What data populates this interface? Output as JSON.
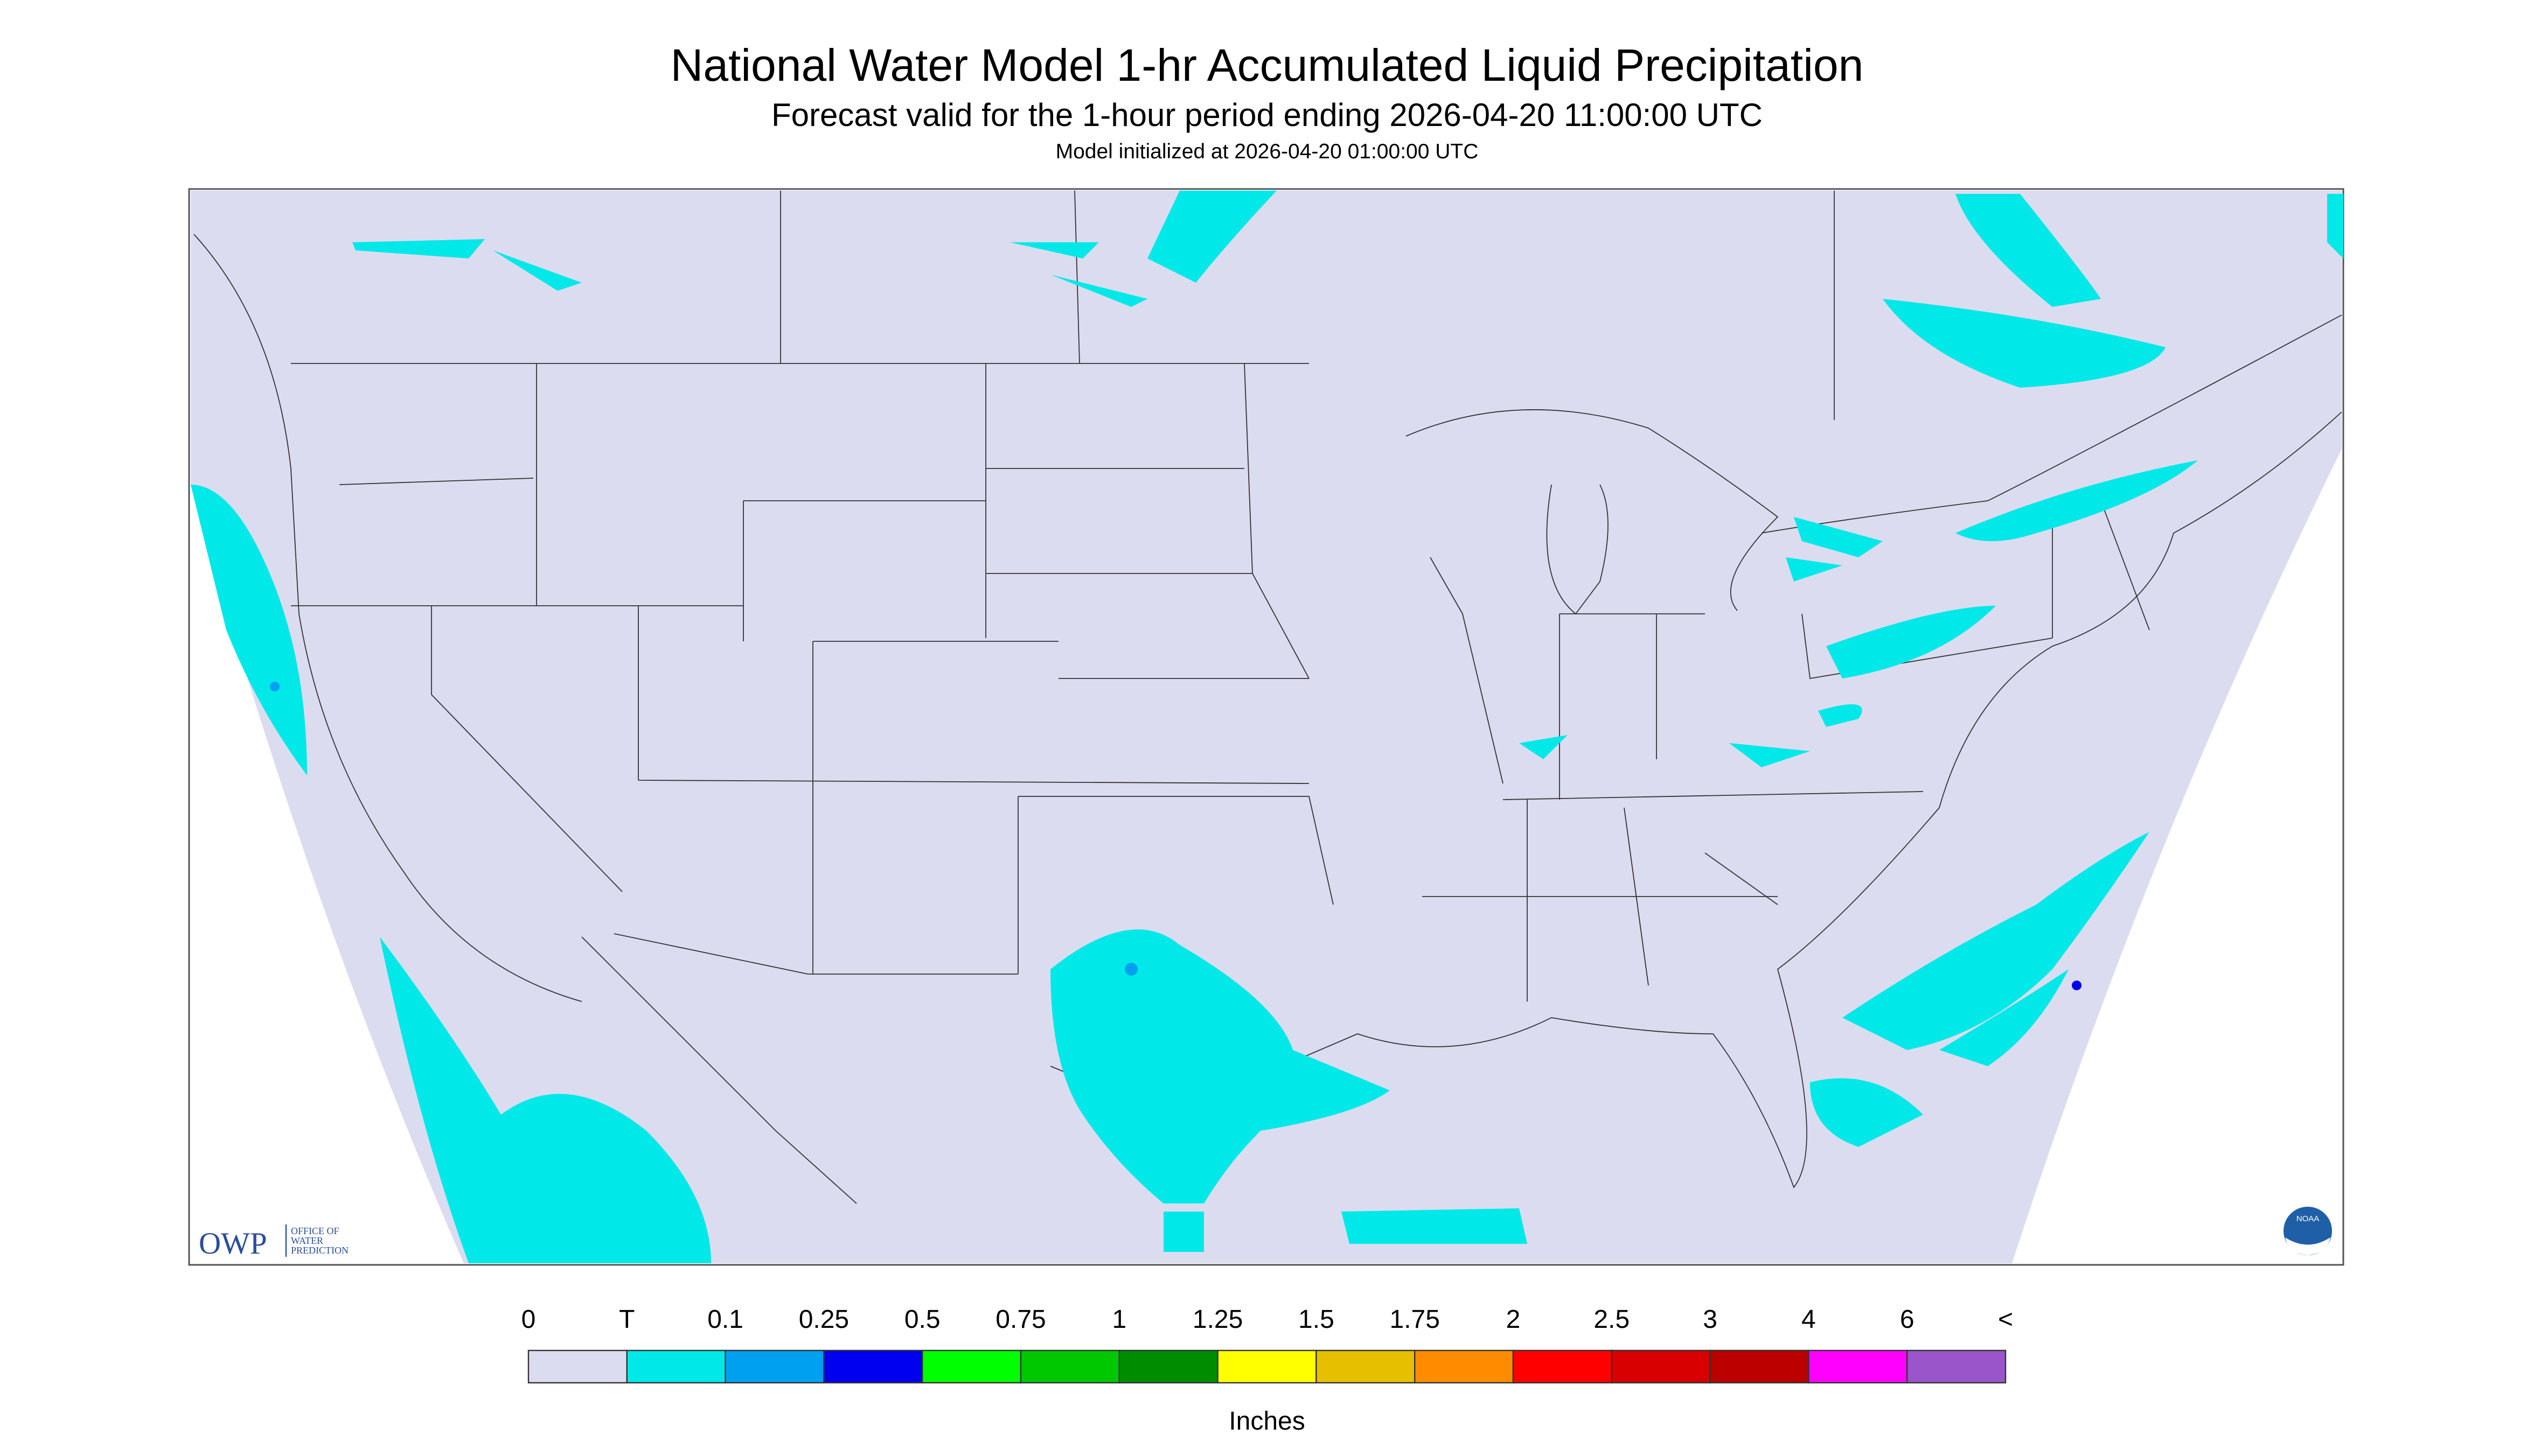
{
  "header": {
    "title": "National Water Model 1-hr Accumulated Liquid Precipitation",
    "subtitle": "Forecast valid for the 1-hour period ending 2026-04-20 11:00:00 UTC",
    "note": "Model initialized at 2026-04-20 01:00:00 UTC"
  },
  "logo": {
    "name": "OWP",
    "lines": [
      "OFFICE OF",
      "WATER",
      "PREDICTION"
    ],
    "badge": "NOAA"
  },
  "legend": {
    "labels": [
      "0",
      "T",
      "0.1",
      "0.25",
      "0.5",
      "0.75",
      "1",
      "1.25",
      "1.5",
      "1.75",
      "2",
      "2.5",
      "3",
      "4",
      "6",
      "<"
    ],
    "colors": [
      "#dcdcf0",
      "#00e8e8",
      "#00a0f0",
      "#0000f0",
      "#00ff00",
      "#00c800",
      "#008c00",
      "#ffff00",
      "#e6bf00",
      "#ff8c00",
      "#ff0000",
      "#d80000",
      "#bc0000",
      "#ff00ff",
      "#9955c9"
    ],
    "unit": "Inches"
  }
}
